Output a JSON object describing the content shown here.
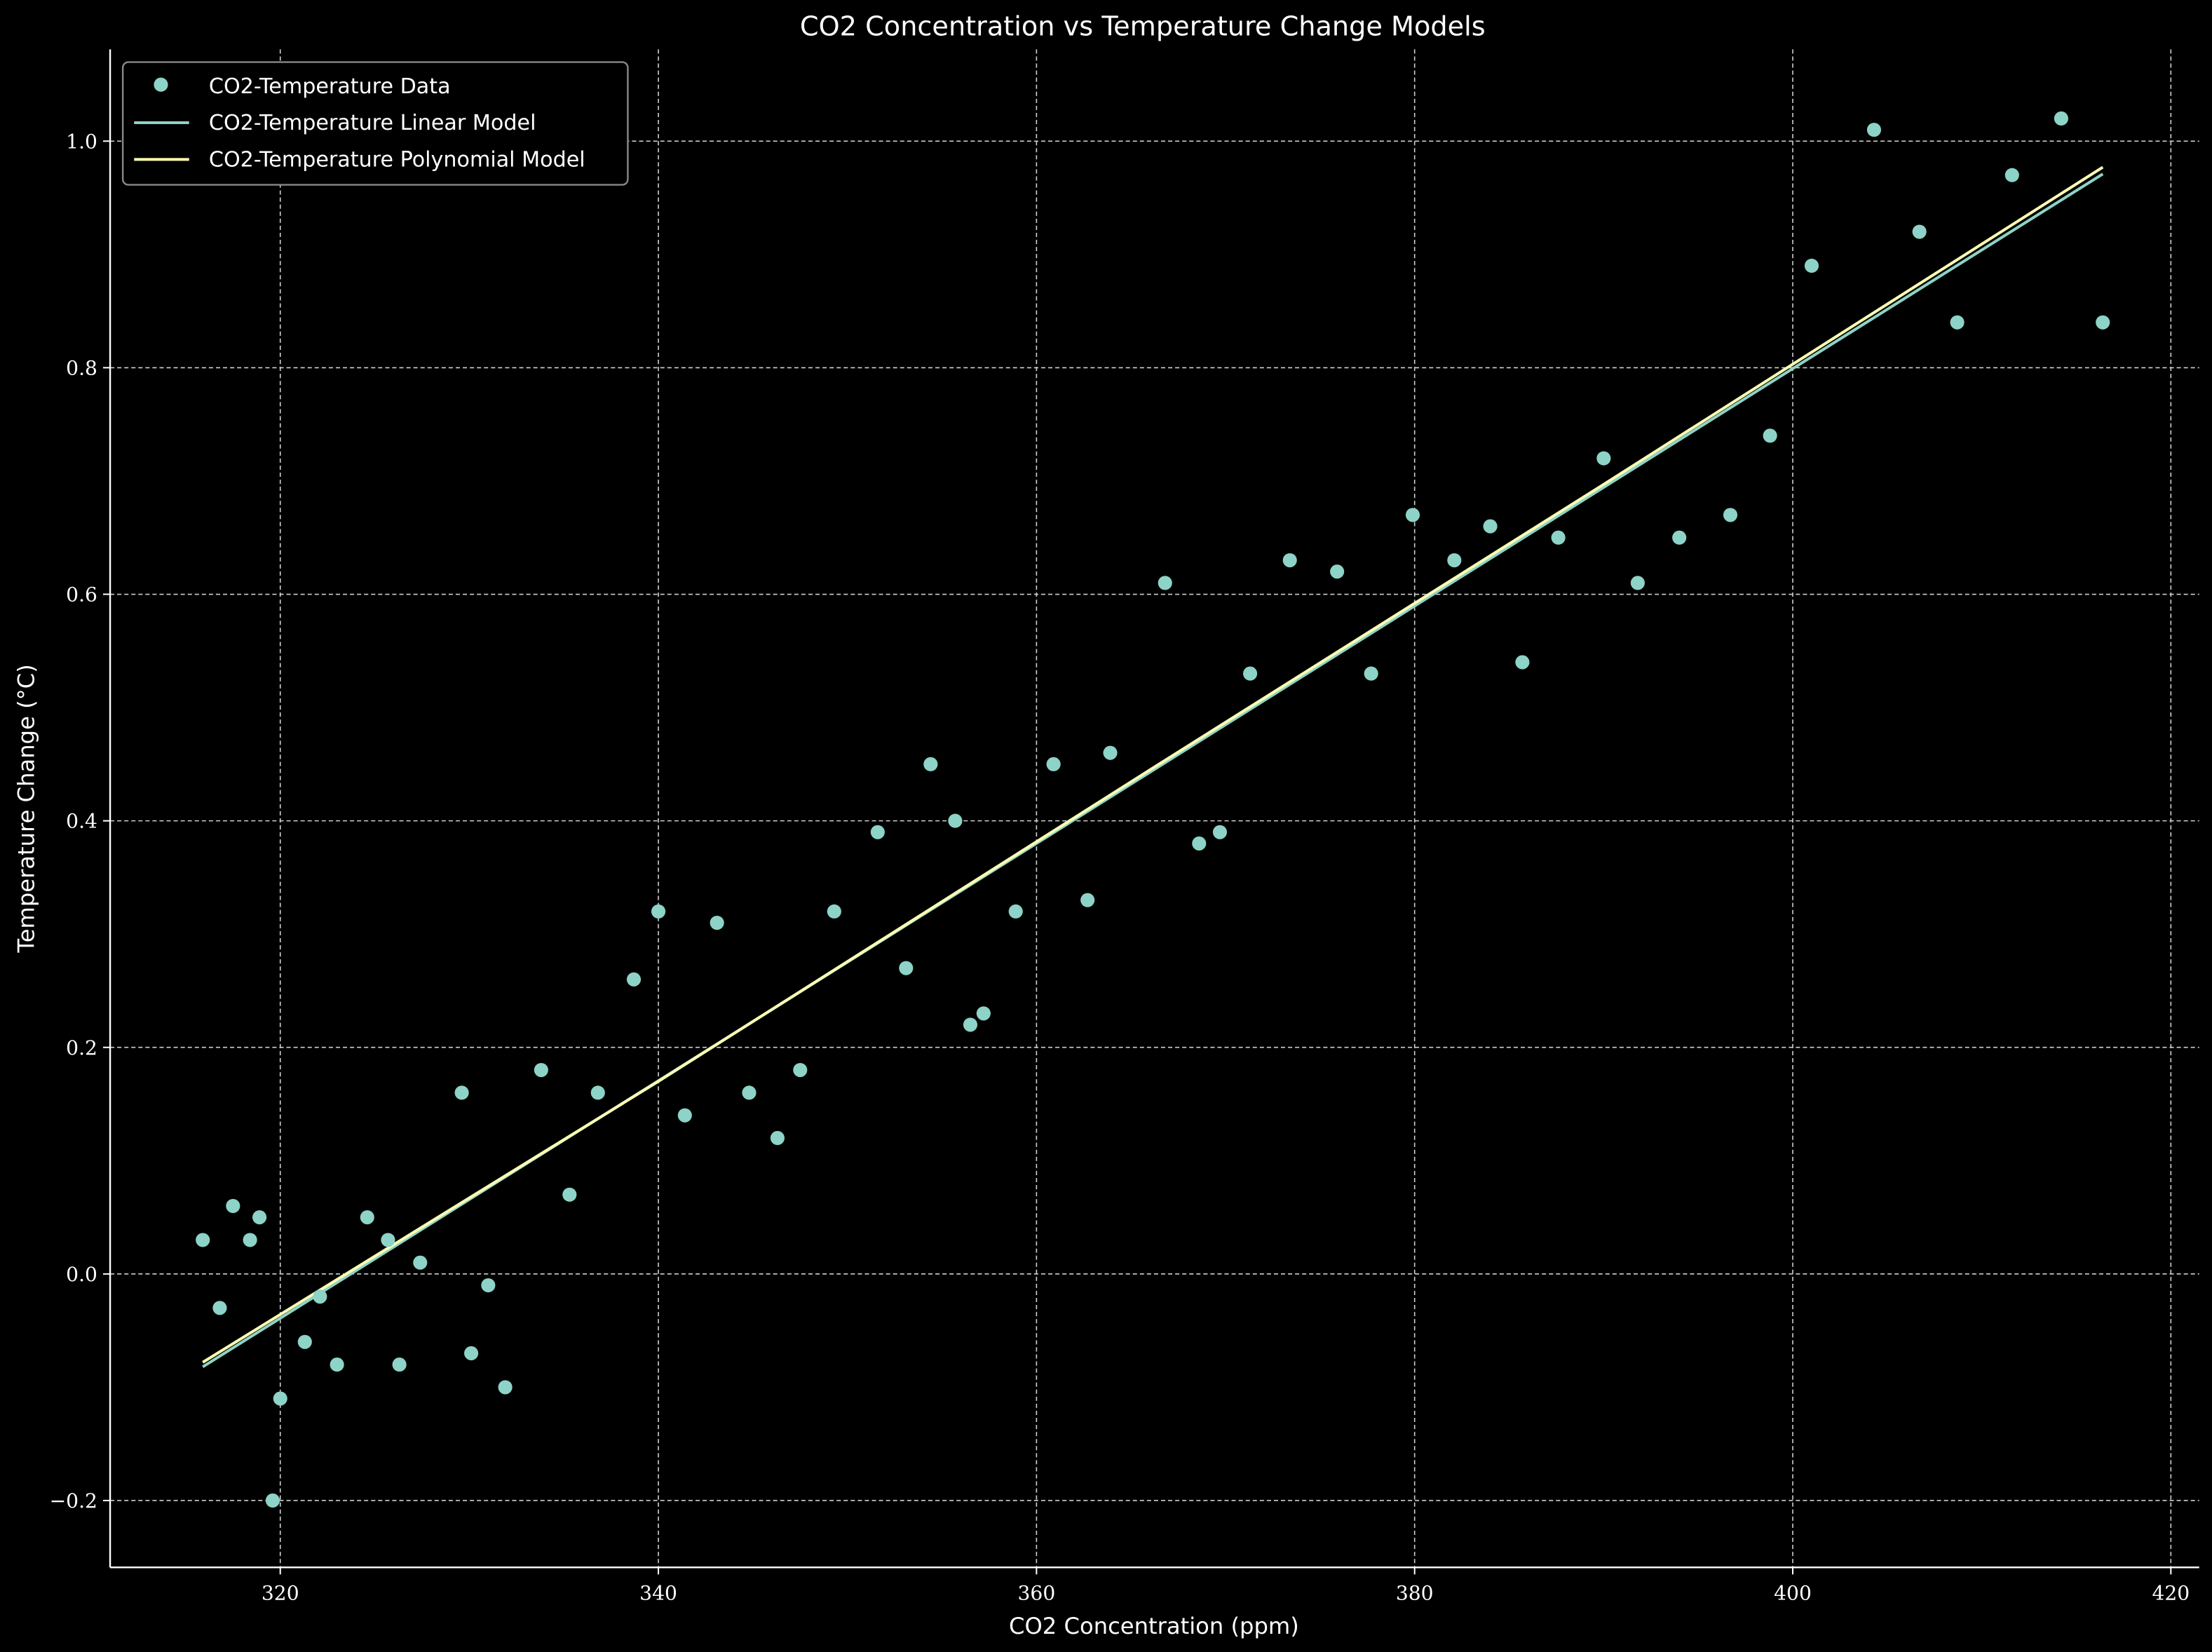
{
  "chart_data": {
    "type": "scatter",
    "title": "CO2 Concentration vs Temperature Change Models",
    "xlabel": "CO2 Concentration (ppm)",
    "ylabel": "Temperature Change (°C)",
    "xlim": [
      311.0,
      421.5
    ],
    "ylim": [
      -0.259,
      1.081
    ],
    "xticks": [
      320,
      340,
      360,
      380,
      400,
      420
    ],
    "yticks": [
      -0.2,
      0.0,
      0.2,
      0.4,
      0.6,
      0.8,
      1.0
    ],
    "xtick_labels": [
      "320",
      "340",
      "360",
      "380",
      "400",
      "420"
    ],
    "ytick_labels": [
      "−0.2",
      "0.0",
      "0.2",
      "0.4",
      "0.6",
      "0.8",
      "1.0"
    ],
    "grid": true,
    "legend_position": "top-left",
    "background": "#000000",
    "series": [
      {
        "name": "CO2-Temperature Data",
        "kind": "scatter",
        "color": "#8dd3c7",
        "x": [
          315.9,
          316.8,
          317.5,
          318.4,
          318.9,
          319.6,
          320.0,
          321.3,
          322.1,
          323.0,
          324.6,
          325.7,
          326.3,
          327.4,
          329.6,
          330.1,
          331.0,
          331.9,
          333.8,
          335.3,
          336.8,
          338.7,
          340.0,
          341.4,
          343.1,
          344.8,
          346.3,
          347.5,
          349.3,
          351.6,
          353.1,
          354.4,
          355.7,
          356.5,
          357.2,
          358.9,
          360.9,
          362.7,
          363.9,
          366.8,
          368.6,
          369.7,
          371.3,
          373.4,
          375.9,
          377.7,
          379.9,
          382.1,
          384.0,
          385.7,
          387.6,
          390.0,
          391.8,
          394.0,
          396.7,
          398.8,
          401.0,
          404.3,
          406.7,
          408.7,
          411.6,
          414.2,
          416.4
        ],
        "y": [
          0.03,
          -0.03,
          0.06,
          0.03,
          0.05,
          -0.2,
          -0.11,
          -0.06,
          -0.02,
          -0.08,
          0.05,
          0.03,
          -0.08,
          0.01,
          0.16,
          -0.07,
          -0.01,
          -0.1,
          0.18,
          0.07,
          0.16,
          0.26,
          0.32,
          0.14,
          0.31,
          0.16,
          0.12,
          0.18,
          0.32,
          0.39,
          0.27,
          0.45,
          0.4,
          0.22,
          0.23,
          0.32,
          0.45,
          0.33,
          0.46,
          0.61,
          0.38,
          0.39,
          0.53,
          0.63,
          0.62,
          0.53,
          0.67,
          0.63,
          0.66,
          0.54,
          0.65,
          0.72,
          0.61,
          0.65,
          0.67,
          0.74,
          0.89,
          1.01,
          0.92,
          0.84,
          0.97,
          1.02,
          0.84
        ]
      },
      {
        "name": "CO2-Temperature Linear Model",
        "kind": "line",
        "color": "#8dd3c7",
        "x": [
          315.9,
          416.4
        ],
        "y": [
          -0.082,
          0.971
        ]
      },
      {
        "name": "CO2-Temperature Polynomial Model",
        "kind": "line",
        "color": "#ffffb3",
        "x": [
          315.9,
          340,
          366,
          390,
          416.4
        ],
        "y": [
          -0.078,
          0.17,
          0.445,
          0.697,
          0.977
        ]
      }
    ]
  }
}
